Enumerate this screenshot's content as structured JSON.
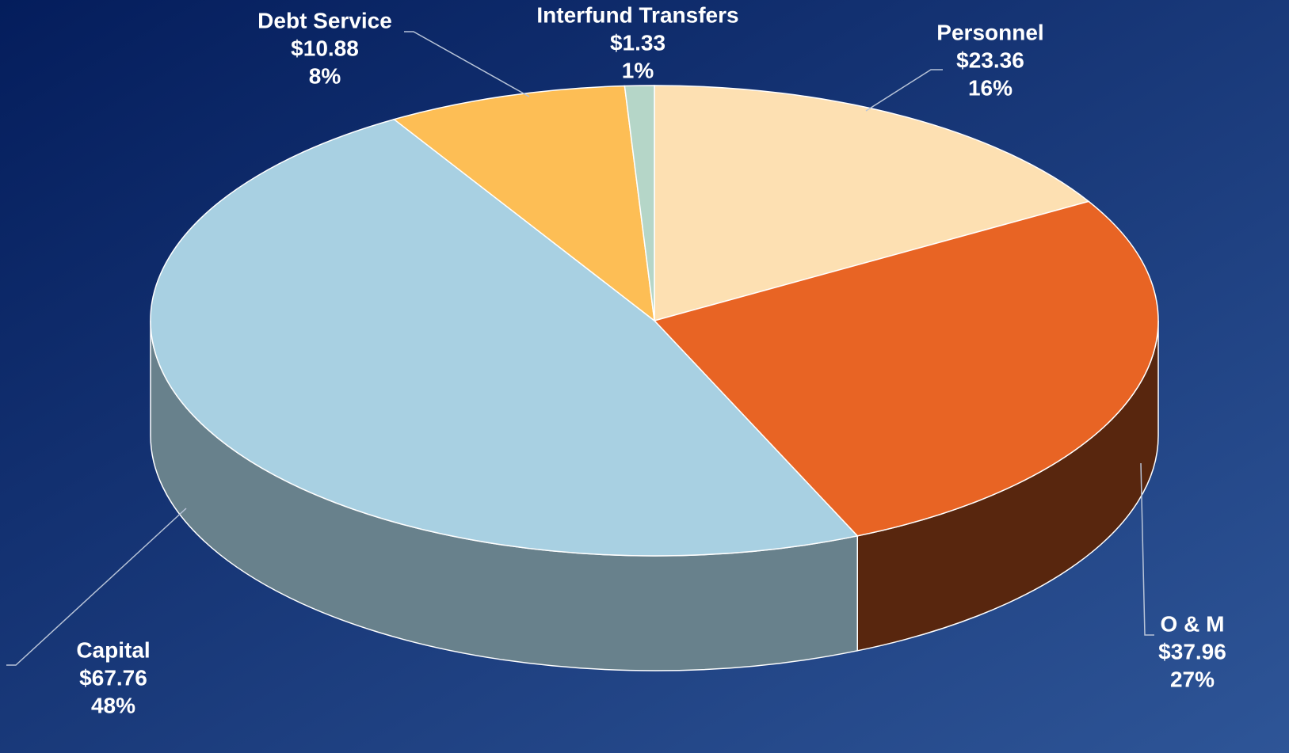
{
  "chart_data": {
    "type": "pie3d",
    "categories": [
      "Personnel",
      "O & M",
      "Capital",
      "Debt Service",
      "Interfund Transfers"
    ],
    "values": [
      23.36,
      37.96,
      67.76,
      10.88,
      1.33
    ],
    "value_labels": [
      "$23.36",
      "$37.96",
      "$67.76",
      "$10.88",
      "$1.33"
    ],
    "percent_labels": [
      "16%",
      "27%",
      "48%",
      "8%",
      "1%"
    ],
    "colors": [
      "#fde0b2",
      "#e86424",
      "#a8d0e2",
      "#fdbe55",
      "#b5d6c8"
    ]
  }
}
